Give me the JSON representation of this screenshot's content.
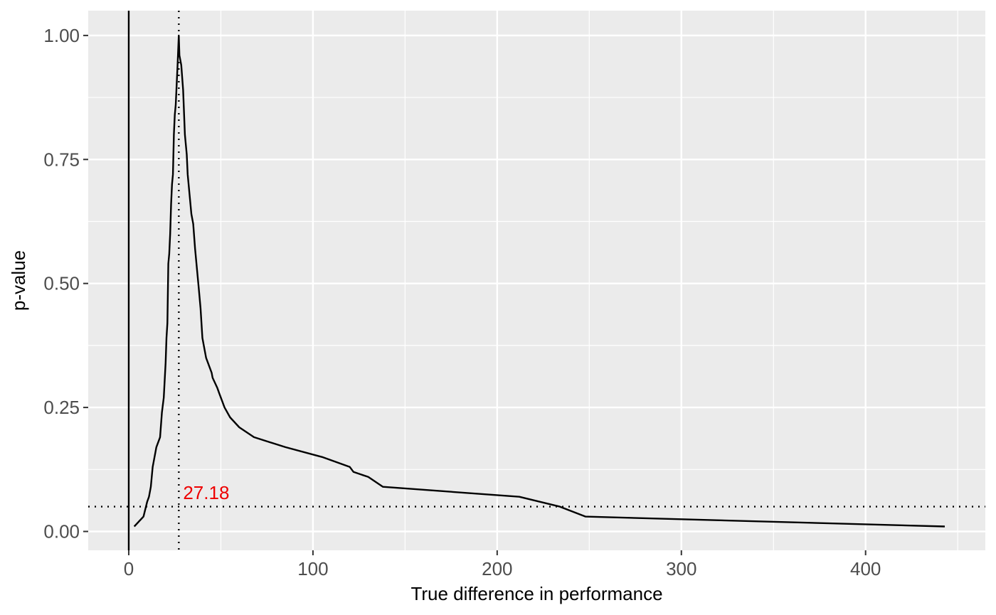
{
  "chart_data": {
    "type": "line",
    "xlabel": "True difference in performance",
    "ylabel": "p-value",
    "xlim": [
      -22,
      465
    ],
    "ylim": [
      -0.038,
      1.05
    ],
    "x_ticks": [
      {
        "value": 0,
        "label": "0"
      },
      {
        "value": 100,
        "label": "100"
      },
      {
        "value": 200,
        "label": "200"
      },
      {
        "value": 300,
        "label": "300"
      },
      {
        "value": 400,
        "label": "400"
      }
    ],
    "x_minor_ticks": [
      50,
      150,
      250,
      350,
      450
    ],
    "y_ticks": [
      {
        "value": 0,
        "label": "0.00"
      },
      {
        "value": 0.25,
        "label": "0.25"
      },
      {
        "value": 0.5,
        "label": "0.50"
      },
      {
        "value": 0.75,
        "label": "0.75"
      },
      {
        "value": 1,
        "label": "1.00"
      }
    ],
    "y_minor_ticks": [
      0.125,
      0.375,
      0.625,
      0.875
    ],
    "grid": true,
    "reference_lines": {
      "vertical_solid_x": 0,
      "vertical_dotted_x": 27.18,
      "horizontal_dotted_y": 0.05
    },
    "annotation": {
      "text": "27.18",
      "x": 29.5,
      "y": 0.065,
      "color": "#ee0000"
    },
    "series": [
      {
        "color": "#000000",
        "x": [
          3,
          8,
          10,
          11,
          12,
          13,
          15,
          16,
          17,
          18,
          19,
          20,
          20.5,
          21,
          21.5,
          22,
          22.5,
          23,
          23.5,
          24,
          24.5,
          25,
          25.5,
          26,
          26.5,
          27.18,
          27.5,
          28.5,
          29.5,
          30.5,
          31,
          31.5,
          32,
          33,
          34,
          35,
          36,
          37,
          38,
          39,
          40,
          41,
          42,
          44,
          45,
          45.5,
          48,
          49,
          52,
          55,
          60,
          68,
          85,
          105,
          120,
          122,
          130,
          138,
          212,
          234,
          248,
          443
        ],
        "y": [
          0.01,
          0.03,
          0.06,
          0.07,
          0.09,
          0.13,
          0.17,
          0.18,
          0.19,
          0.24,
          0.27,
          0.34,
          0.39,
          0.42,
          0.54,
          0.56,
          0.6,
          0.66,
          0.7,
          0.72,
          0.8,
          0.84,
          0.86,
          0.9,
          0.94,
          1.0,
          0.96,
          0.94,
          0.89,
          0.8,
          0.78,
          0.76,
          0.72,
          0.68,
          0.64,
          0.62,
          0.57,
          0.53,
          0.49,
          0.45,
          0.39,
          0.37,
          0.35,
          0.33,
          0.32,
          0.31,
          0.29,
          0.28,
          0.25,
          0.23,
          0.21,
          0.19,
          0.17,
          0.15,
          0.13,
          0.12,
          0.11,
          0.09,
          0.07,
          0.05,
          0.03,
          0.01
        ]
      }
    ]
  }
}
